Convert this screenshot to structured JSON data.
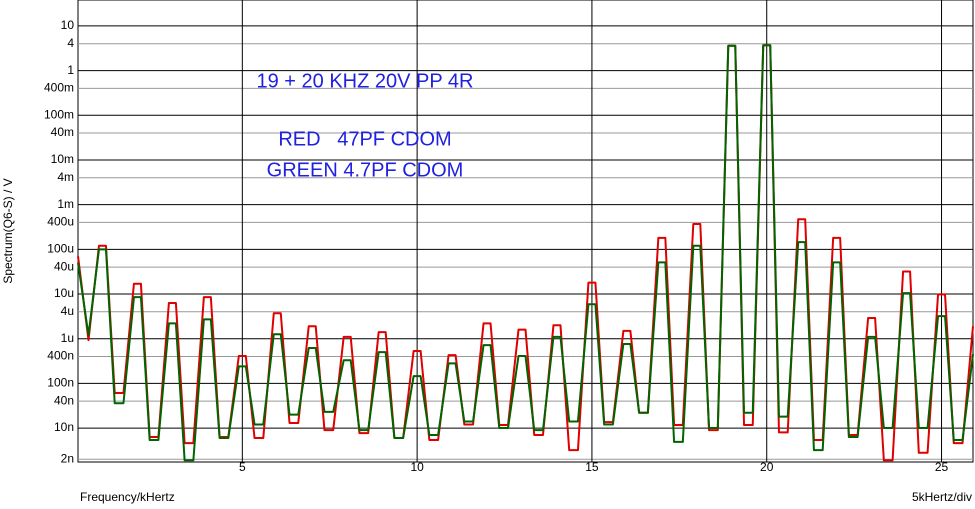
{
  "chart_data": {
    "type": "line",
    "log_y": true,
    "grid": true,
    "ylabel": "Spectrum(Q6-S) / V",
    "xlabel": "Frequency/kHertz",
    "xscale_label": "5kHertz/div",
    "annotations": [
      "19 + 20 KHZ 20V PP 4R",
      "RED   47PF CDOM",
      "GREEN 4.7PF CDOM"
    ],
    "xlim": [
      0.3,
      25.9
    ],
    "xticks": [
      5,
      10,
      15,
      20,
      25
    ],
    "ylim": [
      1.74e-09,
      38
    ],
    "yticks": [
      10,
      4,
      1,
      {
        "value": 0.4,
        "label": "400m"
      },
      {
        "value": 0.1,
        "label": "100m"
      },
      {
        "value": 0.04,
        "label": "40m"
      },
      {
        "value": 0.01,
        "label": "10m"
      },
      {
        "value": 0.004,
        "label": "4m"
      },
      {
        "value": 0.001,
        "label": "1m"
      },
      {
        "value": 0.0004,
        "label": "400u"
      },
      {
        "value": 0.0001,
        "label": "100u"
      },
      {
        "value": 4e-05,
        "label": "40u"
      },
      {
        "value": 1e-05,
        "label": "10u"
      },
      {
        "value": 4e-06,
        "label": "4u"
      },
      {
        "value": 1e-06,
        "label": "1u"
      },
      {
        "value": 4e-07,
        "label": "400n"
      },
      {
        "value": 1e-07,
        "label": "100n"
      },
      {
        "value": 4e-08,
        "label": "40n"
      },
      {
        "value": 1e-08,
        "label": "10n"
      },
      {
        "value": 2e-09,
        "label": "2n"
      }
    ],
    "x": [
      0.3,
      0.6,
      0.9,
      1.1,
      1.35,
      1.6,
      1.9,
      2.1,
      2.35,
      2.6,
      2.9,
      3.1,
      3.35,
      3.6,
      3.9,
      4.1,
      4.35,
      4.6,
      4.9,
      5.1,
      5.35,
      5.6,
      5.9,
      6.1,
      6.35,
      6.6,
      6.9,
      7.1,
      7.35,
      7.6,
      7.9,
      8.1,
      8.35,
      8.6,
      8.9,
      9.1,
      9.35,
      9.6,
      9.9,
      10.1,
      10.35,
      10.6,
      10.9,
      11.1,
      11.35,
      11.6,
      11.9,
      12.1,
      12.35,
      12.6,
      12.9,
      13.1,
      13.35,
      13.6,
      13.9,
      14.1,
      14.35,
      14.6,
      14.9,
      15.1,
      15.35,
      15.6,
      15.9,
      16.1,
      16.35,
      16.6,
      16.9,
      17.1,
      17.35,
      17.6,
      17.9,
      18.1,
      18.35,
      18.6,
      18.9,
      19.1,
      19.35,
      19.6,
      19.9,
      20.1,
      20.35,
      20.6,
      20.9,
      21.1,
      21.35,
      21.6,
      21.9,
      22.1,
      22.35,
      22.6,
      22.9,
      23.1,
      23.35,
      23.6,
      23.9,
      24.1,
      24.35,
      24.6,
      24.9,
      25.1,
      25.35,
      25.6,
      25.9
    ],
    "series": [
      {
        "color": "#e00000",
        "values": [
          7e-05,
          9.3e-07,
          0.00012,
          0.00012,
          6.1e-08,
          6.1e-08,
          1.7e-05,
          1.7e-05,
          6.3e-09,
          6.3e-09,
          6.3e-06,
          6.3e-06,
          4.6e-09,
          4.6e-09,
          8.5e-06,
          8.5e-06,
          6.3e-09,
          6.3e-09,
          4.1e-07,
          4.1e-07,
          6e-09,
          6e-09,
          3.7e-06,
          3.7e-06,
          1.3e-08,
          1.3e-08,
          1.9e-06,
          1.9e-06,
          9e-09,
          9e-09,
          1.1e-06,
          1.1e-06,
          7.7e-09,
          7.7e-09,
          1.4e-06,
          1.4e-06,
          6e-09,
          6e-09,
          5.3e-07,
          5.3e-07,
          5.4e-09,
          5.4e-09,
          4.3e-07,
          4.3e-07,
          1.2e-08,
          1.2e-08,
          2.2e-06,
          2.2e-06,
          1.17e-08,
          1.17e-08,
          1.6e-06,
          1.6e-06,
          7e-09,
          7e-09,
          2e-06,
          2e-06,
          3.2e-09,
          3.2e-09,
          1.8e-05,
          1.8e-05,
          1.36e-08,
          1.36e-08,
          1.5e-06,
          1.5e-06,
          2.2e-08,
          2.2e-08,
          0.00018,
          0.00018,
          1.17e-08,
          1.17e-08,
          0.00037,
          0.00037,
          9e-09,
          9e-09,
          3.6,
          3.6,
          1.17e-08,
          1.17e-08,
          3.7,
          3.7,
          8e-09,
          8e-09,
          0.00047,
          0.00047,
          5.4e-09,
          5.4e-09,
          0.00018,
          0.00018,
          7e-09,
          7e-09,
          2.9e-06,
          2.9e-06,
          1.9e-09,
          1.9e-09,
          3.2e-05,
          3.2e-05,
          2.8e-09,
          2.8e-09,
          9.8e-06,
          9.8e-06,
          4.6e-09,
          4.6e-09,
          1.9e-06
        ]
      },
      {
        "color": "#006400",
        "values": [
          5e-05,
          1.2e-06,
          0.0001,
          0.0001,
          3.6e-08,
          3.6e-08,
          8.5e-06,
          8.5e-06,
          5.4e-09,
          5.4e-09,
          2.2e-06,
          2.2e-06,
          1.9e-09,
          1.9e-09,
          2.7e-06,
          2.7e-06,
          6e-09,
          6e-09,
          2.4e-07,
          2.4e-07,
          1.2e-08,
          1.2e-08,
          1.26e-06,
          1.26e-06,
          2e-08,
          2e-08,
          6.2e-07,
          6.2e-07,
          2.3e-08,
          2.3e-08,
          3.3e-07,
          3.3e-07,
          9e-09,
          9e-09,
          5e-07,
          5e-07,
          6e-09,
          6e-09,
          1.45e-07,
          1.45e-07,
          7e-09,
          7e-09,
          2.8e-07,
          2.8e-07,
          1.4e-08,
          1.4e-08,
          7.2e-07,
          7.2e-07,
          1e-08,
          1e-08,
          4.1e-07,
          4.1e-07,
          9e-09,
          9e-09,
          1.1e-06,
          1.1e-06,
          1.4e-08,
          1.4e-08,
          5.9e-06,
          5.9e-06,
          1.2e-08,
          1.2e-08,
          7.6e-07,
          7.6e-07,
          2.2e-08,
          2.2e-08,
          5.1e-05,
          5.1e-05,
          4.9e-09,
          4.9e-09,
          0.00012,
          0.00012,
          1e-08,
          1e-08,
          3.6,
          3.6,
          2.2e-08,
          2.2e-08,
          3.7,
          3.7,
          1.8e-08,
          1.8e-08,
          0.000145,
          0.000145,
          3.2e-09,
          3.2e-09,
          5.1e-05,
          5.1e-05,
          6.3e-09,
          6.3e-09,
          1.1e-06,
          1.1e-06,
          1e-08,
          1e-08,
          1.05e-05,
          1.05e-05,
          1e-08,
          1e-08,
          3.2e-06,
          3.2e-06,
          5.4e-09,
          5.4e-09,
          4.5e-07
        ]
      }
    ]
  }
}
